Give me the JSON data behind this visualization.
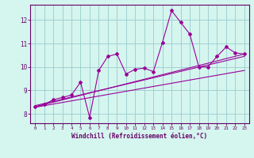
{
  "x": [
    0,
    1,
    2,
    3,
    4,
    5,
    6,
    7,
    8,
    9,
    10,
    11,
    12,
    13,
    14,
    15,
    16,
    17,
    18,
    19,
    20,
    21,
    22,
    23
  ],
  "y_main": [
    8.3,
    8.4,
    8.6,
    8.7,
    8.8,
    9.35,
    7.85,
    9.85,
    10.45,
    10.55,
    9.7,
    9.9,
    9.95,
    9.8,
    11.05,
    12.4,
    11.9,
    11.4,
    10.0,
    10.0,
    10.45,
    10.85,
    10.6,
    10.55
  ],
  "trend1_x": [
    0,
    23
  ],
  "trend1_y": [
    8.3,
    10.55
  ],
  "trend2_x": [
    0,
    23
  ],
  "trend2_y": [
    8.35,
    10.45
  ],
  "trend3_x": [
    0,
    23
  ],
  "trend3_y": [
    8.28,
    9.85
  ],
  "xlim": [
    -0.5,
    23.5
  ],
  "ylim": [
    7.6,
    12.65
  ],
  "yticks": [
    8,
    9,
    10,
    11,
    12
  ],
  "xticks": [
    0,
    1,
    2,
    3,
    4,
    5,
    6,
    7,
    8,
    9,
    10,
    11,
    12,
    13,
    14,
    15,
    16,
    17,
    18,
    19,
    20,
    21,
    22,
    23
  ],
  "xlabel": "Windchill (Refroidissement éolien,°C)",
  "line_color": "#990099",
  "bg_color": "#d5f5ef",
  "grid_color": "#99cccc",
  "axis_color": "#660066",
  "text_color": "#660066",
  "xlabel_color": "#660066"
}
